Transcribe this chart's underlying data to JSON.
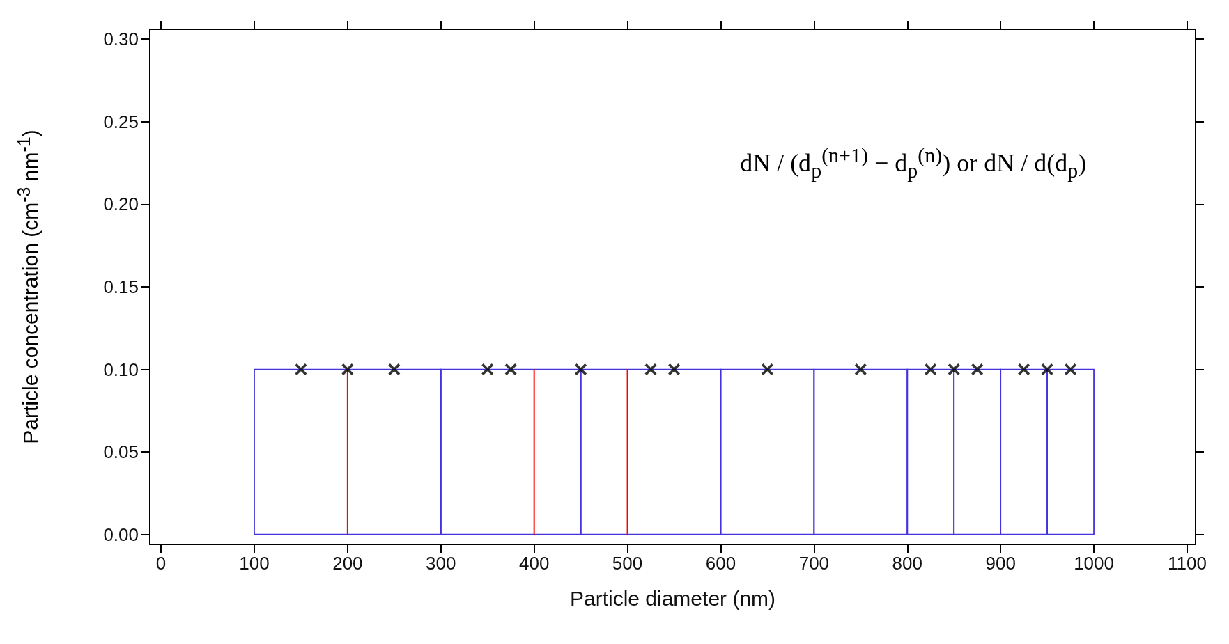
{
  "chart_data": {
    "type": "histogram",
    "xlabel": "Particle diameter (nm)",
    "ylabel": "Particle concentration (cm$^{-3}$ nm$^{-1}$)",
    "annotations": [
      "dN / (d$_{p}$$^{(n+1)}$ − d$_{p}$$^{(n)}$)  or  dN / d(d$_{p}$)"
    ],
    "series": [
      {
        "bins": [
          100,
          300,
          450,
          600,
          700,
          800,
          850,
          900,
          950,
          1000
        ],
        "values": [
          0.1,
          0.1,
          0.1,
          0.1,
          0.1,
          0.1,
          0.1,
          0.1,
          0.1
        ],
        "color": "#4433dd"
      },
      {
        "type": "bar",
        "x": [
          200,
          400,
          500
        ],
        "values": [
          0.1,
          0.1,
          0.1
        ],
        "color": "#ff0000"
      },
      {
        "type": "scatter",
        "x": [
          150,
          200,
          250,
          350,
          375,
          450,
          525,
          550,
          650,
          750,
          825,
          850,
          875,
          925,
          950,
          975
        ],
        "values": [
          0.1,
          0.1,
          0.1,
          0.1,
          0.1,
          0.1,
          0.1,
          0.1,
          0.1,
          0.1,
          0.1,
          0.1,
          0.1,
          0.1,
          0.1,
          0.1
        ],
        "color": "#000000"
      }
    ],
    "marker": "cross",
    "xlim": [
      -12,
      1109
    ],
    "xticks": [
      0,
      100,
      200,
      300,
      400,
      500,
      600,
      700,
      800,
      900,
      1000,
      1100
    ],
    "ylim": [
      -0.006,
      0.306
    ],
    "yticks": [
      {
        "value": 0,
        "label": "0.00"
      },
      0.05,
      {
        "value": 0.1,
        "label": "0.10"
      },
      0.15,
      {
        "value": 0.2,
        "label": "0.20"
      },
      0.25,
      {
        "value": 0.3,
        "label": "0.30"
      }
    ],
    "grid": false
  }
}
